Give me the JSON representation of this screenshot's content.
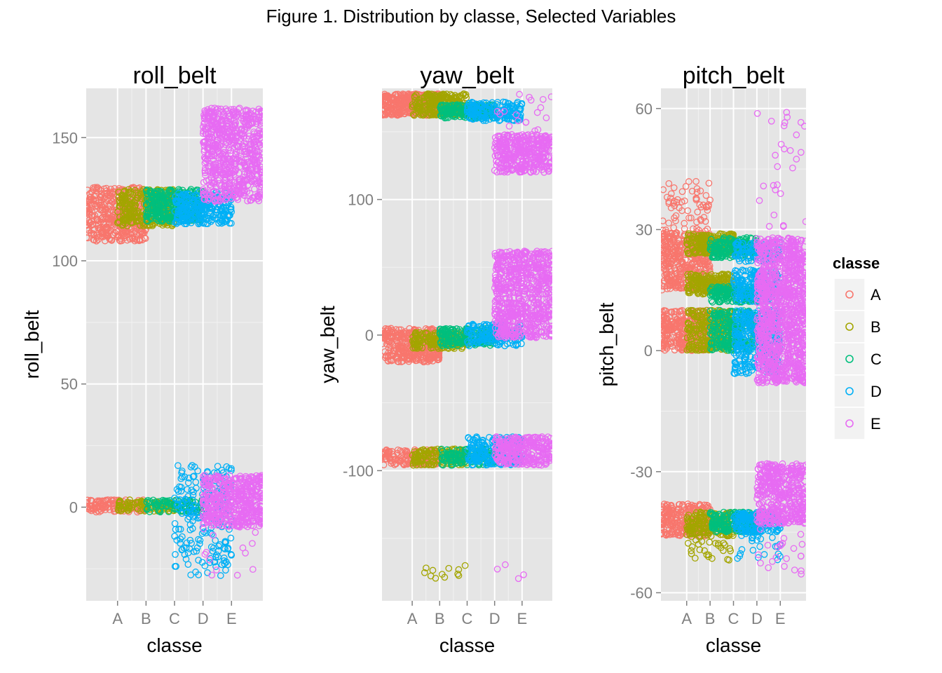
{
  "figure": {
    "title": "Figure 1. Distribution by classe, Selected Variables"
  },
  "legend": {
    "title": "classe",
    "placement": "right",
    "items": [
      {
        "label": "A",
        "color": "#F8766D"
      },
      {
        "label": "B",
        "color": "#A3A500"
      },
      {
        "label": "C",
        "color": "#00BF7D"
      },
      {
        "label": "D",
        "color": "#00B0F6"
      },
      {
        "label": "E",
        "color": "#E76BF3"
      }
    ]
  },
  "colors": {
    "panel_background": "#E5E5E5",
    "grid": "#FFFFFF",
    "tick_label": "#7F7F7F",
    "text": "#000000"
  },
  "chart_data": [
    {
      "type": "scatter",
      "title": "roll_belt",
      "xlabel": "classe",
      "ylabel": "roll_belt",
      "categories": [
        "A",
        "B",
        "C",
        "D",
        "E"
      ],
      "xlim": [
        -0.1,
        6.1
      ],
      "ylim": [
        -38,
        170
      ],
      "yticks": [
        0,
        50,
        100,
        150
      ],
      "grid": true,
      "clusters": [
        {
          "classe": "A",
          "x": [
            -0.1,
            2.0
          ],
          "y": [
            108,
            130
          ],
          "density": 420
        },
        {
          "classe": "A",
          "x": [
            -0.1,
            2.0
          ],
          "y": [
            -2,
            3
          ],
          "density": 130
        },
        {
          "classe": "B",
          "x": [
            1.0,
            3.0
          ],
          "y": [
            114,
            129
          ],
          "density": 320
        },
        {
          "classe": "B",
          "x": [
            1.0,
            3.0
          ],
          "y": [
            -2,
            3
          ],
          "density": 100
        },
        {
          "classe": "C",
          "x": [
            2.0,
            4.0
          ],
          "y": [
            116,
            129
          ],
          "density": 300
        },
        {
          "classe": "C",
          "x": [
            2.0,
            4.0
          ],
          "y": [
            -2,
            3
          ],
          "density": 90
        },
        {
          "classe": "D",
          "x": [
            3.0,
            5.0
          ],
          "y": [
            115,
            128
          ],
          "density": 260
        },
        {
          "classe": "D",
          "x": [
            3.0,
            5.0
          ],
          "y": [
            -5,
            17
          ],
          "density": 130
        },
        {
          "classe": "D",
          "x": [
            3.0,
            5.0
          ],
          "y": [
            -28,
            -5
          ],
          "density": 90
        },
        {
          "classe": "E",
          "x": [
            4.0,
            6.1
          ],
          "y": [
            124,
            162
          ],
          "density": 700
        },
        {
          "classe": "E",
          "x": [
            4.0,
            6.1
          ],
          "y": [
            -8,
            13
          ],
          "density": 480
        },
        {
          "classe": "E",
          "x": [
            4.0,
            6.1
          ],
          "y": [
            -28,
            -8
          ],
          "density": 14
        }
      ]
    },
    {
      "type": "scatter",
      "title": "yaw_belt",
      "xlabel": "classe",
      "ylabel": "yaw_belt",
      "categories": [
        "A",
        "B",
        "C",
        "D",
        "E"
      ],
      "xlim": [
        -0.1,
        6.1
      ],
      "ylim": [
        -196,
        182
      ],
      "yticks": [
        -100,
        0,
        100
      ],
      "grid": true,
      "clusters": [
        {
          "classe": "A",
          "x": [
            -0.1,
            2.0
          ],
          "y": [
            162,
            178
          ],
          "density": 380
        },
        {
          "classe": "A",
          "x": [
            -0.1,
            2.0
          ],
          "y": [
            -20,
            5
          ],
          "density": 360
        },
        {
          "classe": "A",
          "x": [
            -0.1,
            2.0
          ],
          "y": [
            -96,
            -84
          ],
          "density": 150
        },
        {
          "classe": "B",
          "x": [
            1.0,
            3.0
          ],
          "y": [
            162,
            178
          ],
          "density": 250
        },
        {
          "classe": "B",
          "x": [
            1.0,
            3.0
          ],
          "y": [
            -10,
            2
          ],
          "density": 170
        },
        {
          "classe": "B",
          "x": [
            1.0,
            3.0
          ],
          "y": [
            -96,
            -84
          ],
          "density": 140
        },
        {
          "classe": "B",
          "x": [
            1.0,
            3.0
          ],
          "y": [
            -180,
            -170
          ],
          "density": 12
        },
        {
          "classe": "C",
          "x": [
            2.0,
            4.0
          ],
          "y": [
            160,
            170
          ],
          "density": 200
        },
        {
          "classe": "C",
          "x": [
            2.0,
            4.0
          ],
          "y": [
            -8,
            5
          ],
          "density": 170
        },
        {
          "classe": "C",
          "x": [
            2.0,
            4.0
          ],
          "y": [
            -96,
            -84
          ],
          "density": 130
        },
        {
          "classe": "D",
          "x": [
            3.0,
            5.0
          ],
          "y": [
            158,
            172
          ],
          "density": 170
        },
        {
          "classe": "D",
          "x": [
            3.0,
            5.0
          ],
          "y": [
            -8,
            8
          ],
          "density": 150
        },
        {
          "classe": "D",
          "x": [
            3.0,
            5.0
          ],
          "y": [
            -96,
            -75
          ],
          "density": 200
        },
        {
          "classe": "E",
          "x": [
            4.0,
            6.1
          ],
          "y": [
            120,
            148
          ],
          "density": 380
        },
        {
          "classe": "E",
          "x": [
            4.0,
            6.1
          ],
          "y": [
            30,
            62
          ],
          "density": 380
        },
        {
          "classe": "E",
          "x": [
            4.0,
            6.1
          ],
          "y": [
            -2,
            28
          ],
          "density": 340
        },
        {
          "classe": "E",
          "x": [
            4.0,
            6.1
          ],
          "y": [
            -96,
            -75
          ],
          "density": 280
        },
        {
          "classe": "E",
          "x": [
            4.0,
            6.1
          ],
          "y": [
            150,
            178
          ],
          "density": 18
        },
        {
          "classe": "E",
          "x": [
            4.0,
            6.1
          ],
          "y": [
            -180,
            -165
          ],
          "density": 4
        }
      ]
    },
    {
      "type": "scatter",
      "title": "pitch_belt",
      "xlabel": "classe",
      "ylabel": "pitch_belt",
      "categories": [
        "A",
        "B",
        "C",
        "D",
        "E"
      ],
      "xlim": [
        -0.1,
        6.1
      ],
      "ylim": [
        -62,
        65
      ],
      "yticks": [
        -60,
        -30,
        0,
        30,
        60
      ],
      "grid": true,
      "clusters": [
        {
          "classe": "A",
          "x": [
            -0.1,
            2.0
          ],
          "y": [
            15,
            30
          ],
          "density": 400
        },
        {
          "classe": "A",
          "x": [
            -0.1,
            2.0
          ],
          "y": [
            0,
            10
          ],
          "density": 320
        },
        {
          "classe": "A",
          "x": [
            -0.1,
            2.0
          ],
          "y": [
            30,
            42
          ],
          "density": 60
        },
        {
          "classe": "A",
          "x": [
            -0.1,
            2.0
          ],
          "y": [
            -46,
            -38
          ],
          "density": 260
        },
        {
          "classe": "B",
          "x": [
            1.0,
            3.0
          ],
          "y": [
            14,
            19
          ],
          "density": 200
        },
        {
          "classe": "B",
          "x": [
            1.0,
            3.0
          ],
          "y": [
            24,
            29
          ],
          "density": 200
        },
        {
          "classe": "B",
          "x": [
            1.0,
            3.0
          ],
          "y": [
            0,
            10
          ],
          "density": 260
        },
        {
          "classe": "B",
          "x": [
            1.0,
            3.0
          ],
          "y": [
            -46,
            -40
          ],
          "density": 170
        },
        {
          "classe": "B",
          "x": [
            1.0,
            3.0
          ],
          "y": [
            -52,
            -46
          ],
          "density": 28
        },
        {
          "classe": "C",
          "x": [
            2.0,
            4.0
          ],
          "y": [
            12,
            16
          ],
          "density": 160
        },
        {
          "classe": "C",
          "x": [
            2.0,
            4.0
          ],
          "y": [
            23,
            28
          ],
          "density": 170
        },
        {
          "classe": "C",
          "x": [
            2.0,
            4.0
          ],
          "y": [
            0,
            10
          ],
          "density": 240
        },
        {
          "classe": "C",
          "x": [
            2.0,
            4.0
          ],
          "y": [
            -45,
            -40
          ],
          "density": 170
        },
        {
          "classe": "D",
          "x": [
            3.0,
            5.0
          ],
          "y": [
            12,
            20
          ],
          "density": 190
        },
        {
          "classe": "D",
          "x": [
            3.0,
            5.0
          ],
          "y": [
            -6,
            10
          ],
          "density": 320
        },
        {
          "classe": "D",
          "x": [
            3.0,
            5.0
          ],
          "y": [
            22,
            27
          ],
          "density": 110
        },
        {
          "classe": "D",
          "x": [
            3.0,
            5.0
          ],
          "y": [
            -45,
            -40
          ],
          "density": 160
        },
        {
          "classe": "D",
          "x": [
            3.0,
            5.0
          ],
          "y": [
            -52,
            -45
          ],
          "density": 24
        },
        {
          "classe": "E",
          "x": [
            4.0,
            6.1
          ],
          "y": [
            -8,
            15
          ],
          "density": 700
        },
        {
          "classe": "E",
          "x": [
            4.0,
            6.1
          ],
          "y": [
            14,
            28
          ],
          "density": 420
        },
        {
          "classe": "E",
          "x": [
            4.0,
            6.1
          ],
          "y": [
            -43,
            -28
          ],
          "density": 440
        },
        {
          "classe": "E",
          "x": [
            4.0,
            6.1
          ],
          "y": [
            30,
            60
          ],
          "density": 28
        },
        {
          "classe": "E",
          "x": [
            4.0,
            6.1
          ],
          "y": [
            -56,
            -44
          ],
          "density": 22
        }
      ]
    }
  ]
}
